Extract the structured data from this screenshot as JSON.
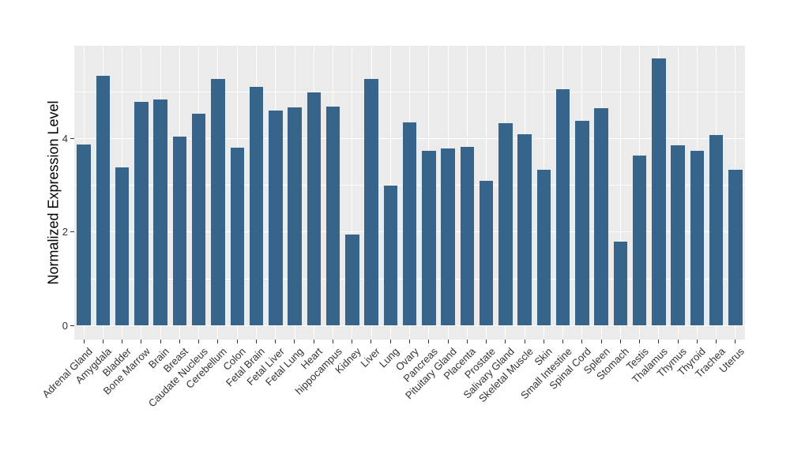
{
  "figure": {
    "background": "#ffffff",
    "panel_background": "#ebebeb",
    "grid_color": "#ffffff",
    "bar_color": "#36648b",
    "axis_text_color": "#333333",
    "axis_title_color": "#000000"
  },
  "chart_data": {
    "type": "bar",
    "title": "",
    "xlabel": "",
    "ylabel": "Normalized Expression Level",
    "categories": [
      "Adrenal Gland",
      "Amygdala",
      "Bladder",
      "Bone Marrow",
      "Brain",
      "Breast",
      "Caudate Nucleus",
      "Cerebellum",
      "Colon",
      "Fetal Brain",
      "Fetal Liver",
      "Fetal Lung",
      "Heart",
      "hippocampus",
      "Kidney",
      "Liver",
      "Lung",
      "Ovary",
      "Pancreas",
      "Pituitary Gland",
      "Placenta",
      "Prostate",
      "Salivary Gland",
      "Skeletal Muscle",
      "Skin",
      "Small Intestine",
      "Spinal Cord",
      "Spleen",
      "Stomach",
      "Testis",
      "Thalamus",
      "Thymus",
      "Thyroid",
      "Trachea",
      "Uterus"
    ],
    "values": [
      3.87,
      5.35,
      3.38,
      4.79,
      4.83,
      4.05,
      4.53,
      5.28,
      3.8,
      5.11,
      4.6,
      4.67,
      4.99,
      4.69,
      1.94,
      5.27,
      3.0,
      4.35,
      3.74,
      3.79,
      3.82,
      3.1,
      4.33,
      4.1,
      3.34,
      5.05,
      4.38,
      4.65,
      1.8,
      3.64,
      5.71,
      3.86,
      3.74,
      4.07,
      3.34
    ],
    "y_ticks": [
      0,
      2,
      4
    ],
    "y_minor_ticks": [
      1,
      3,
      5
    ],
    "ylim": [
      0,
      6
    ],
    "grid": true,
    "legend": false,
    "bar_orientation": "vertical"
  }
}
